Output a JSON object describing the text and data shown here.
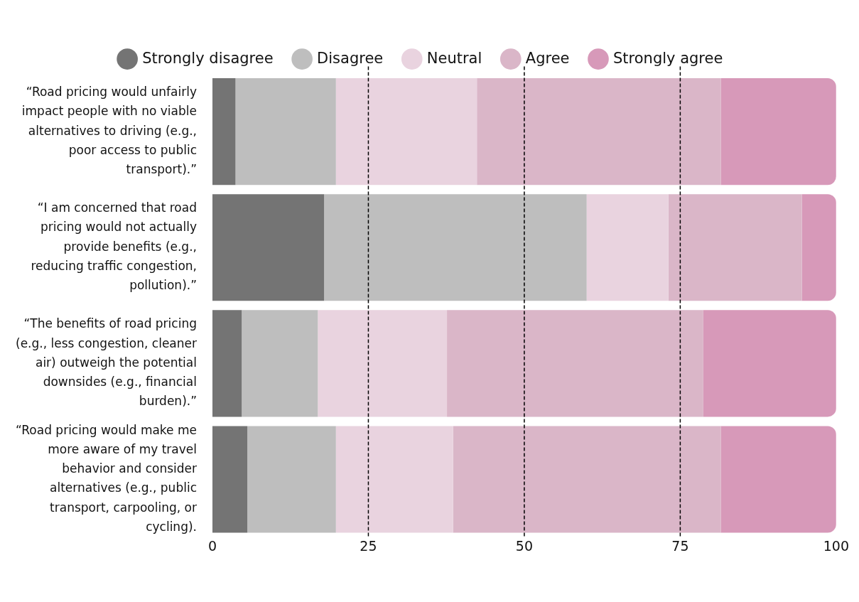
{
  "chart_data": {
    "type": "bar",
    "orientation": "horizontal",
    "stacked": true,
    "categories": [
      "“Road pricing would unfairly impact people with no viable alternatives to driving (e.g., poor access to public transport).”",
      "“I am concerned that road pricing would not actually provide benefits (e.g., reducing traffic congestion, pollution).”",
      "“The benefits of road pricing (e.g., less congestion, cleaner air) outweigh the potential downsides (e.g., financial burden).”",
      "“Road pricing would make me more aware of my travel behavior and consider alternatives (e.g., public transport, carpooling, or cycling)."
    ],
    "series": [
      {
        "name": "Strongly disagree",
        "color": "#747474",
        "values": [
          3.7,
          17.9,
          4.7,
          5.6
        ]
      },
      {
        "name": "Disagree",
        "color": "#bebebe",
        "values": [
          16.1,
          42.1,
          12.2,
          14.2
        ]
      },
      {
        "name": "Neutral",
        "color": "#e9d3df",
        "values": [
          22.6,
          13.1,
          20.7,
          18.8
        ]
      },
      {
        "name": "Agree",
        "color": "#dab6c8",
        "values": [
          39.1,
          21.4,
          41.1,
          42.9
        ]
      },
      {
        "name": "Strongly agree",
        "color": "#d799b9",
        "values": [
          18.5,
          5.5,
          21.3,
          18.5
        ]
      }
    ],
    "xlim": [
      0,
      100
    ],
    "xticks": [
      0,
      25,
      50,
      75,
      100
    ],
    "grid": false,
    "legend": "top",
    "ref_lines": [
      {
        "axis": "x",
        "value": 25,
        "line_style": "dashed",
        "color": "#000000"
      },
      {
        "axis": "x",
        "value": 50,
        "line_style": "dashed",
        "color": "#000000"
      },
      {
        "axis": "x",
        "value": 75,
        "line_style": "dashed",
        "color": "#000000"
      }
    ]
  }
}
